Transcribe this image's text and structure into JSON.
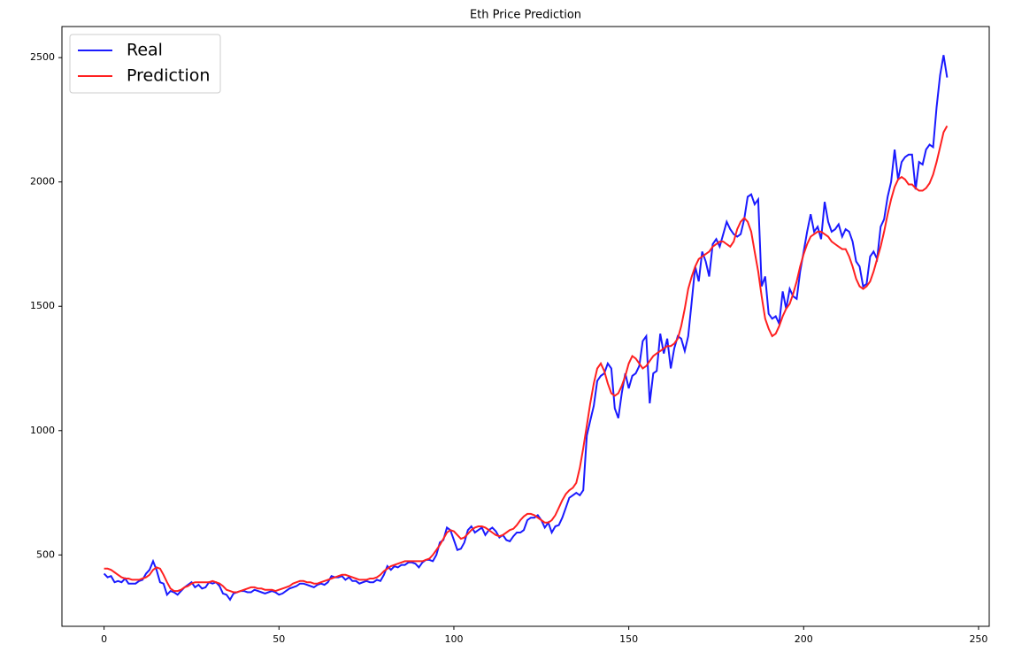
{
  "chart_data": {
    "type": "line",
    "title": "Eth Price Prediction",
    "x": [
      0,
      1,
      2,
      3,
      4,
      5,
      6,
      7,
      8,
      9,
      10,
      11,
      12,
      13,
      14,
      15,
      16,
      17,
      18,
      19,
      20,
      21,
      22,
      23,
      24,
      25,
      26,
      27,
      28,
      29,
      30,
      31,
      32,
      33,
      34,
      35,
      36,
      37,
      38,
      39,
      40,
      41,
      42,
      43,
      44,
      45,
      46,
      47,
      48,
      49,
      50,
      51,
      52,
      53,
      54,
      55,
      56,
      57,
      58,
      59,
      60,
      61,
      62,
      63,
      64,
      65,
      66,
      67,
      68,
      69,
      70,
      71,
      72,
      73,
      74,
      75,
      76,
      77,
      78,
      79,
      80,
      81,
      82,
      83,
      84,
      85,
      86,
      87,
      88,
      89,
      90,
      91,
      92,
      93,
      94,
      95,
      96,
      97,
      98,
      99,
      100,
      101,
      102,
      103,
      104,
      105,
      106,
      107,
      108,
      109,
      110,
      111,
      112,
      113,
      114,
      115,
      116,
      117,
      118,
      119,
      120,
      121,
      122,
      123,
      124,
      125,
      126,
      127,
      128,
      129,
      130,
      131,
      132,
      133,
      134,
      135,
      136,
      137,
      138,
      139,
      140,
      141,
      142,
      143,
      144,
      145,
      146,
      147,
      148,
      149,
      150,
      151,
      152,
      153,
      154,
      155,
      156,
      157,
      158,
      159,
      160,
      161,
      162,
      163,
      164,
      165,
      166,
      167,
      168,
      169,
      170,
      171,
      172,
      173,
      174,
      175,
      176,
      177,
      178,
      179,
      180,
      181,
      182,
      183,
      184,
      185,
      186,
      187,
      188,
      189,
      190,
      191,
      192,
      193,
      194,
      195,
      196,
      197,
      198,
      199,
      200,
      201,
      202,
      203,
      204,
      205,
      206,
      207,
      208,
      209,
      210,
      211,
      212,
      213,
      214,
      215,
      216,
      217,
      218,
      219,
      220,
      221,
      222,
      223,
      224,
      225,
      226,
      227,
      228,
      229,
      230,
      231,
      232,
      233,
      234,
      235,
      236,
      237,
      238,
      239,
      240,
      241
    ],
    "series": [
      {
        "name": "Real",
        "color": "#1a1aff",
        "values": [
          425,
          410,
          415,
          390,
          395,
          390,
          405,
          385,
          385,
          385,
          395,
          400,
          425,
          440,
          475,
          440,
          390,
          385,
          340,
          355,
          350,
          340,
          355,
          370,
          380,
          390,
          370,
          380,
          365,
          370,
          390,
          385,
          390,
          375,
          345,
          340,
          320,
          345,
          350,
          355,
          355,
          350,
          350,
          360,
          355,
          350,
          345,
          350,
          355,
          350,
          340,
          345,
          355,
          365,
          370,
          375,
          385,
          385,
          380,
          375,
          370,
          380,
          385,
          380,
          390,
          415,
          410,
          410,
          415,
          400,
          410,
          395,
          395,
          385,
          390,
          395,
          390,
          390,
          400,
          395,
          420,
          455,
          440,
          455,
          450,
          460,
          460,
          470,
          470,
          465,
          450,
          470,
          480,
          480,
          475,
          500,
          550,
          560,
          610,
          600,
          560,
          520,
          525,
          550,
          600,
          615,
          590,
          600,
          610,
          580,
          600,
          610,
          595,
          570,
          580,
          560,
          555,
          575,
          590,
          590,
          600,
          640,
          650,
          650,
          660,
          640,
          610,
          630,
          590,
          615,
          620,
          650,
          690,
          730,
          740,
          750,
          740,
          760,
          980,
          1040,
          1100,
          1200,
          1220,
          1230,
          1270,
          1250,
          1090,
          1050,
          1150,
          1230,
          1170,
          1220,
          1230,
          1260,
          1360,
          1380,
          1110,
          1230,
          1240,
          1390,
          1310,
          1370,
          1250,
          1330,
          1380,
          1370,
          1320,
          1380,
          1520,
          1660,
          1600,
          1720,
          1680,
          1620,
          1750,
          1770,
          1740,
          1790,
          1840,
          1810,
          1790,
          1780,
          1790,
          1850,
          1940,
          1950,
          1910,
          1930,
          1580,
          1620,
          1470,
          1450,
          1460,
          1430,
          1560,
          1490,
          1570,
          1540,
          1530,
          1640,
          1720,
          1800,
          1870,
          1800,
          1820,
          1770,
          1920,
          1840,
          1800,
          1810,
          1830,
          1780,
          1810,
          1800,
          1760,
          1680,
          1660,
          1580,
          1590,
          1700,
          1720,
          1690,
          1820,
          1850,
          1940,
          2000,
          2130,
          2010,
          2080,
          2100,
          2110,
          2110,
          1970,
          2080,
          2070,
          2130,
          2150,
          2140,
          2300,
          2430,
          2510,
          2420
        ]
      },
      {
        "name": "Prediction",
        "color": "#ff2020",
        "values": [
          445,
          445,
          440,
          430,
          420,
          410,
          405,
          405,
          400,
          400,
          400,
          405,
          410,
          420,
          440,
          450,
          445,
          420,
          390,
          365,
          355,
          355,
          360,
          370,
          375,
          385,
          390,
          390,
          390,
          390,
          390,
          395,
          390,
          385,
          375,
          360,
          355,
          350,
          350,
          355,
          360,
          365,
          370,
          370,
          365,
          365,
          360,
          360,
          360,
          355,
          360,
          365,
          370,
          375,
          385,
          390,
          395,
          395,
          390,
          390,
          385,
          385,
          390,
          395,
          400,
          405,
          410,
          415,
          420,
          420,
          415,
          410,
          405,
          400,
          400,
          400,
          405,
          405,
          410,
          420,
          435,
          445,
          455,
          460,
          465,
          470,
          475,
          475,
          475,
          475,
          475,
          475,
          480,
          485,
          500,
          520,
          540,
          565,
          590,
          600,
          595,
          580,
          565,
          570,
          585,
          600,
          610,
          615,
          615,
          610,
          600,
          590,
          580,
          575,
          580,
          590,
          600,
          605,
          620,
          640,
          655,
          665,
          665,
          660,
          650,
          640,
          630,
          630,
          640,
          660,
          690,
          720,
          745,
          760,
          770,
          790,
          850,
          930,
          1020,
          1110,
          1190,
          1250,
          1270,
          1240,
          1190,
          1150,
          1140,
          1150,
          1180,
          1220,
          1270,
          1300,
          1290,
          1270,
          1250,
          1260,
          1280,
          1300,
          1310,
          1320,
          1330,
          1340,
          1340,
          1350,
          1370,
          1420,
          1490,
          1570,
          1620,
          1660,
          1690,
          1700,
          1710,
          1720,
          1740,
          1750,
          1760,
          1760,
          1750,
          1740,
          1760,
          1810,
          1840,
          1855,
          1840,
          1800,
          1720,
          1640,
          1540,
          1450,
          1410,
          1380,
          1390,
          1420,
          1460,
          1490,
          1510,
          1550,
          1600,
          1660,
          1710,
          1750,
          1780,
          1790,
          1800,
          1800,
          1790,
          1780,
          1760,
          1750,
          1740,
          1730,
          1730,
          1700,
          1660,
          1610,
          1580,
          1570,
          1580,
          1600,
          1640,
          1690,
          1740,
          1800,
          1870,
          1930,
          1980,
          2010,
          2020,
          2010,
          1990,
          1990,
          1975,
          1965,
          1965,
          1975,
          1995,
          2030,
          2080,
          2140,
          2200,
          2225
        ]
      }
    ],
    "xlim": [
      -12.05,
      253.05
    ],
    "xticks": [
      0,
      50,
      100,
      150,
      200,
      250
    ],
    "ylim": [
      213,
      2625
    ],
    "yticks": [
      500,
      1000,
      1500,
      2000,
      2500
    ],
    "legend": "upper left"
  }
}
